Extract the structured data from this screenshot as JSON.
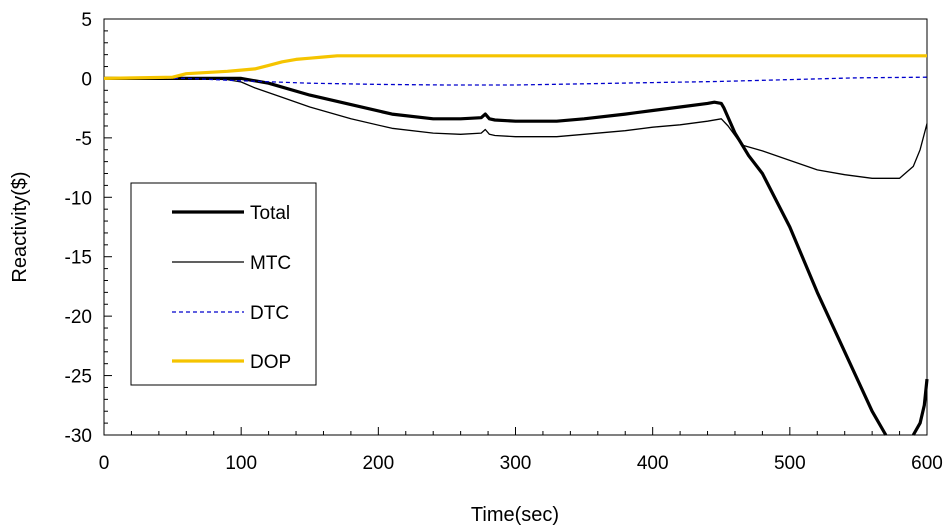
{
  "chart_data": {
    "type": "line",
    "title": "",
    "xlabel": "Time(sec)",
    "ylabel": "Reactivity($)",
    "xlim": [
      0,
      600
    ],
    "ylim": [
      -30,
      5
    ],
    "x_ticks": [
      0,
      100,
      200,
      300,
      400,
      500,
      600
    ],
    "y_ticks": [
      5,
      0,
      -5,
      -10,
      -15,
      -20,
      -25,
      -30
    ],
    "x_tick_labels": [
      "0",
      "100",
      "200",
      "300",
      "400",
      "500",
      "600"
    ],
    "y_tick_labels": [
      "5",
      "0",
      "-5",
      "-10",
      "-15",
      "-20",
      "-25",
      "-30"
    ],
    "grid": false,
    "legend_position": "left",
    "series": [
      {
        "name": "Total",
        "color": "#000000",
        "style": "solid",
        "weight": "thick",
        "x": [
          0,
          60,
          90,
          100,
          120,
          150,
          180,
          210,
          240,
          260,
          275,
          278,
          281,
          285,
          300,
          330,
          350,
          380,
          400,
          420,
          440,
          445,
          450,
          452,
          460,
          470,
          480,
          500,
          520,
          540,
          560,
          570
        ],
        "y": [
          0,
          0,
          0,
          0,
          -0.4,
          -1.4,
          -2.2,
          -3.0,
          -3.4,
          -3.4,
          -3.3,
          -3.0,
          -3.4,
          -3.5,
          -3.6,
          -3.6,
          -3.4,
          -3.0,
          -2.7,
          -2.4,
          -2.1,
          -2.0,
          -2.1,
          -2.5,
          -4.6,
          -6.5,
          -8.0,
          -12.5,
          -18.0,
          -23.0,
          -28.0,
          -30.0
        ]
      },
      {
        "name": "Total",
        "color": "#000000",
        "style": "solid",
        "weight": "thick",
        "x": [
          590,
          595,
          598,
          600
        ],
        "y": [
          -30.0,
          -29.0,
          -27.5,
          -25.3
        ]
      },
      {
        "name": "MTC",
        "color": "#000000",
        "style": "solid",
        "weight": "thin",
        "x": [
          0,
          60,
          90,
          100,
          110,
          130,
          150,
          180,
          210,
          240,
          260,
          275,
          278,
          281,
          285,
          300,
          330,
          350,
          380,
          400,
          420,
          440,
          450,
          455,
          465,
          480,
          500,
          520,
          540,
          560,
          580,
          590,
          595,
          600
        ],
        "y": [
          0,
          0,
          -0.1,
          -0.3,
          -0.8,
          -1.6,
          -2.4,
          -3.4,
          -4.2,
          -4.6,
          -4.7,
          -4.6,
          -4.3,
          -4.7,
          -4.8,
          -4.9,
          -4.9,
          -4.7,
          -4.4,
          -4.1,
          -3.9,
          -3.6,
          -3.4,
          -4.0,
          -5.6,
          -6.1,
          -6.9,
          -7.7,
          -8.1,
          -8.4,
          -8.4,
          -7.4,
          -6.0,
          -3.8
        ]
      },
      {
        "name": "DTC",
        "color": "#0000cc",
        "style": "dashed",
        "weight": "thin",
        "x": [
          0,
          60,
          100,
          150,
          200,
          250,
          300,
          350,
          400,
          450,
          500,
          550,
          600
        ],
        "y": [
          0,
          0,
          -0.2,
          -0.4,
          -0.5,
          -0.55,
          -0.55,
          -0.45,
          -0.35,
          -0.25,
          -0.1,
          0.05,
          0.1
        ]
      },
      {
        "name": "DOP",
        "color": "#f5c400",
        "style": "solid",
        "weight": "thick",
        "x": [
          0,
          50,
          60,
          90,
          100,
          110,
          120,
          130,
          140,
          150,
          160,
          170,
          200,
          300,
          400,
          500,
          600
        ],
        "y": [
          0,
          0.1,
          0.4,
          0.6,
          0.7,
          0.8,
          1.1,
          1.4,
          1.6,
          1.7,
          1.8,
          1.9,
          1.9,
          1.9,
          1.9,
          1.9,
          1.9
        ]
      }
    ],
    "legend": [
      {
        "label": "Total",
        "color": "#000000",
        "style": "solid",
        "weight": "thick"
      },
      {
        "label": "MTC",
        "color": "#000000",
        "style": "solid",
        "weight": "thin"
      },
      {
        "label": "DTC",
        "color": "#0000cc",
        "style": "dashed",
        "weight": "thin"
      },
      {
        "label": "DOP",
        "color": "#f5c400",
        "style": "solid",
        "weight": "thick"
      }
    ]
  }
}
